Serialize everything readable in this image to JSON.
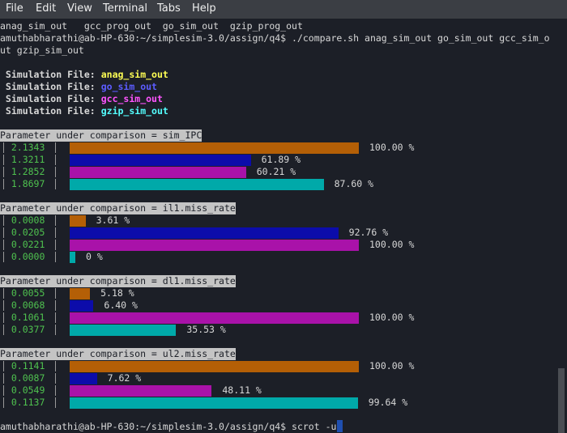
{
  "menu": [
    "File",
    "Edit",
    "View",
    "Terminal",
    "Tabs",
    "Help"
  ],
  "terminal": {
    "listing": "anag_sim_out   gcc_prog_out  go_sim_out  gzip_prog_out",
    "command": "amuthabharathi@ab-HP-630:~/simplesim-3.0/assign/q4$ ./compare.sh anag_sim_out go_sim_out gcc_sim_o",
    "command_wrap": "ut gzip_sim_out",
    "sim_label": "Simulation File:",
    "sim_files": [
      {
        "name": "anag_sim_out",
        "color": "#ffff54"
      },
      {
        "name": "go_sim_out",
        "color": "#5c5cff"
      },
      {
        "name": "gcc_sim_out",
        "color": "#ff54ff"
      },
      {
        "name": "gzip_sim_out",
        "color": "#54ffff"
      }
    ],
    "bar_colors": [
      "#b45f06",
      "#0c0caa",
      "#a912a9",
      "#00a9a9"
    ],
    "comparisons": [
      {
        "title": "Parameter under comparison = sim_IPC",
        "values": [
          "2.1343",
          "1.3211",
          "1.2852",
          "1.8697"
        ],
        "percents": [
          100.0,
          61.89,
          60.21,
          87.6
        ],
        "percent_labels": [
          "100.00 %",
          "61.89 %",
          "60.21 %",
          "87.60 %"
        ]
      },
      {
        "title": "Parameter under comparison = il1.miss_rate",
        "values": [
          "0.0008",
          "0.0205",
          "0.0221",
          "0.0000"
        ],
        "percents": [
          3.61,
          92.76,
          100.0,
          0
        ],
        "percent_labels": [
          "3.61 %",
          "92.76 %",
          "100.00 %",
          "0 %"
        ]
      },
      {
        "title": "Parameter under comparison = dl1.miss_rate",
        "values": [
          "0.0055",
          "0.0068",
          "0.1061",
          "0.0377"
        ],
        "percents": [
          5.18,
          6.4,
          100.0,
          35.53
        ],
        "percent_labels": [
          "5.18 %",
          "6.40 %",
          "100.00 %",
          "35.53 %"
        ]
      },
      {
        "title": "Parameter under comparison = ul2.miss_rate",
        "values": [
          "0.1141",
          "0.0087",
          "0.0549",
          "0.1137"
        ],
        "percents": [
          100.0,
          7.62,
          48.11,
          99.64
        ],
        "percent_labels": [
          "100.00 %",
          "7.62 %",
          "48.11 %",
          "99.64 %"
        ]
      }
    ],
    "prompt": "amuthabharathi@ab-HP-630:~/simplesim-3.0/assign/q4$ scrot -u"
  }
}
